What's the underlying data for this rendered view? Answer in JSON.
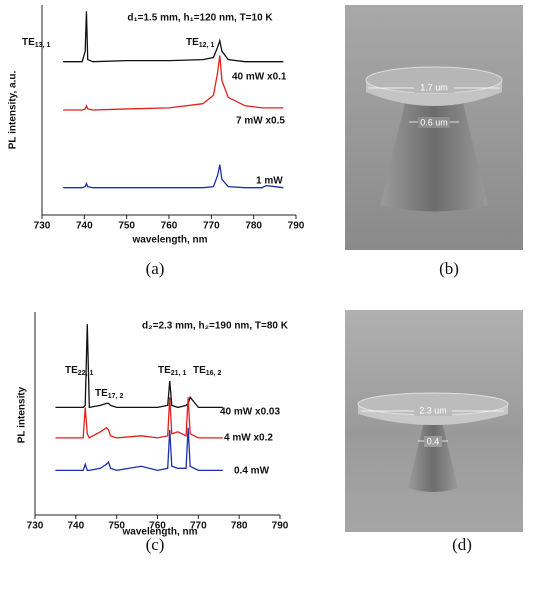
{
  "chart_data": [
    {
      "type": "line",
      "title": "d₁=1.5 mm, h₁=120 nm, T=10 K",
      "x_label": "wavelength, nm",
      "y_label": "PL intensity, a.u.",
      "caption": "(a)",
      "xlim": [
        730,
        790
      ],
      "xticks": [
        730,
        740,
        750,
        760,
        770,
        780,
        790
      ],
      "ylim": [
        0,
        100
      ],
      "annotations": [
        {
          "text": "TE",
          "sub": "13, 1"
        },
        {
          "text": "TE",
          "sub": "12, 1"
        }
      ],
      "x": [
        735,
        739.5,
        740.2,
        740.5,
        740.8,
        742,
        750,
        760,
        768,
        770.5,
        771.5,
        772,
        772.5,
        774,
        778,
        782,
        783,
        787
      ],
      "series": [
        {
          "name": "40 mW x0.1",
          "color": "#111111",
          "values": [
            73,
            73,
            78,
            97,
            74,
            73,
            73.5,
            73.5,
            74,
            75,
            80,
            83,
            78,
            74,
            73,
            73,
            73,
            73
          ]
        },
        {
          "name": "7 mW x0.5",
          "color": "#e0201c",
          "values": [
            50,
            50,
            50.5,
            52,
            50.5,
            50,
            50.5,
            51,
            53,
            57,
            68,
            76,
            64,
            56,
            52,
            51,
            51,
            51
          ]
        },
        {
          "name": "1 mW",
          "color": "#1c2fa8",
          "values": [
            13,
            13,
            13.5,
            15,
            13.5,
            13,
            13,
            13,
            13,
            13.5,
            19,
            24,
            17,
            13.5,
            13,
            13,
            14,
            13
          ]
        }
      ]
    },
    {
      "type": "line",
      "title": "d₂=2.3 mm, h₂=190 nm, T=80 K",
      "x_label": "wavelength, nm",
      "y_label": "PL intensity",
      "caption": "(c)",
      "xlim": [
        730,
        790
      ],
      "xticks": [
        730,
        740,
        750,
        760,
        770,
        780,
        790
      ],
      "ylim": [
        0,
        100
      ],
      "annotations": [
        {
          "text": "TE",
          "sub": "22, 1"
        },
        {
          "text": "TE",
          "sub": "17, 2"
        },
        {
          "text": "TE",
          "sub": "21, 1"
        },
        {
          "text": "TE",
          "sub": "16, 2"
        }
      ],
      "x": [
        735,
        741.8,
        742.3,
        742.8,
        743.3,
        746,
        747.5,
        748,
        748.5,
        750,
        756,
        760,
        762.5,
        763,
        763.5,
        765,
        767,
        767.5,
        768,
        770,
        776
      ],
      "series": [
        {
          "name": "40 mW x0.03",
          "color": "#111111",
          "values": [
            53,
            53,
            54,
            94,
            53,
            54,
            55,
            55,
            54,
            53,
            53,
            53,
            54,
            66,
            54,
            53,
            54,
            55,
            58,
            53,
            53
          ]
        },
        {
          "name": "4 mW x0.2",
          "color": "#e0201c",
          "values": [
            38,
            38,
            53,
            40,
            38,
            41,
            43,
            42,
            39,
            38,
            39,
            38,
            39,
            58,
            40,
            41,
            39,
            58,
            40,
            38,
            38
          ]
        },
        {
          "name": "0.4 mW",
          "color": "#1c2fa8",
          "values": [
            22,
            22,
            25,
            22,
            22,
            23,
            25,
            26,
            23,
            22,
            24,
            22,
            23,
            42,
            24,
            23,
            23,
            43,
            24,
            22,
            22
          ]
        }
      ]
    }
  ],
  "images": [
    {
      "caption": "(b)",
      "labels": [
        "1.7 um",
        "0.6 um"
      ]
    },
    {
      "caption": "(d)",
      "labels": [
        "2.3 um",
        "0.4"
      ]
    }
  ]
}
